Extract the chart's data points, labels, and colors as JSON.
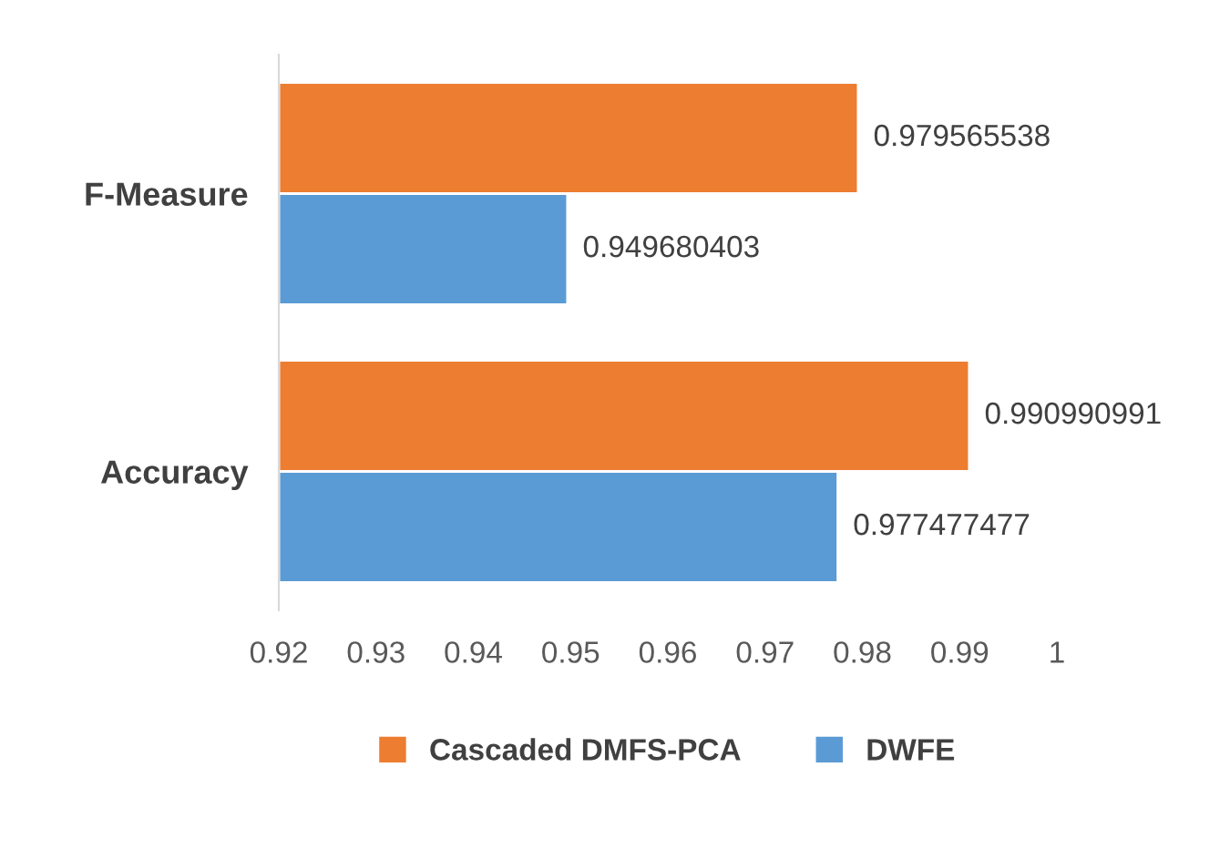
{
  "chart_data": {
    "type": "bar",
    "orientation": "horizontal",
    "categories": [
      "F-Measure",
      "Accuracy"
    ],
    "series": [
      {
        "name": "Cascaded DMFS-PCA",
        "color": "#ed7d31",
        "values": [
          0.979565538,
          0.990990991
        ]
      },
      {
        "name": "DWFE",
        "color": "#5b9bd5",
        "values": [
          0.949680403,
          0.977477477
        ]
      }
    ],
    "xlim": [
      0.92,
      1
    ],
    "xticks": [
      {
        "value": 0.92,
        "label": "0.92"
      },
      {
        "value": 0.93,
        "label": "0.93"
      },
      {
        "value": 0.94,
        "label": "0.94"
      },
      {
        "value": 0.95,
        "label": "0.95"
      },
      {
        "value": 0.96,
        "label": "0.96"
      },
      {
        "value": 0.97,
        "label": "0.97"
      },
      {
        "value": 0.98,
        "label": "0.98"
      },
      {
        "value": 0.99,
        "label": "0.99"
      },
      {
        "value": 1,
        "label": "1"
      }
    ],
    "data_labels": true,
    "legend": "bottom",
    "grid": false
  }
}
